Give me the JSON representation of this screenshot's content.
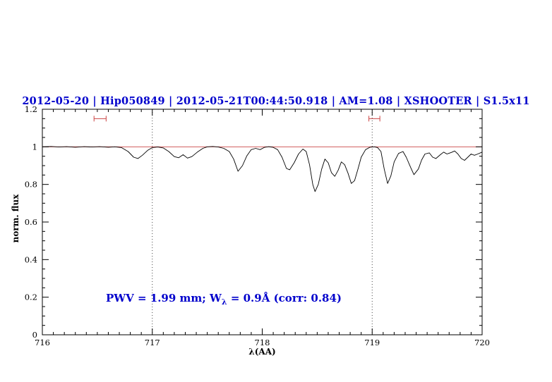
{
  "page": {
    "background": "#ffffff"
  },
  "chart_data": {
    "type": "line",
    "title": "2012-05-20 | Hip050849 | 2012-05-21T00:44:50.918 | AM=1.08 | XSHOOTER | S1.5x11",
    "xlabel": "λ(AA)",
    "ylabel": "norm. flux",
    "xlim": [
      716,
      720
    ],
    "ylim": [
      0,
      1.2
    ],
    "xticks": [
      716,
      717,
      718,
      719,
      720
    ],
    "xtick_labels": [
      "716",
      "717",
      "718",
      "719",
      "720"
    ],
    "yticks": [
      0,
      0.2,
      0.4,
      0.6,
      0.8,
      1,
      1.2
    ],
    "ytick_labels": [
      "0",
      "0.2",
      "0.4",
      "0.6",
      "0.8",
      "1",
      "1.2"
    ],
    "x_minor_step": 0.1,
    "y_minor_step": 0.05,
    "grid": "off",
    "legend": "none",
    "dotted_vlines": [
      717,
      719
    ],
    "continuum_line_y": 1.0,
    "range_markers": [
      {
        "x1": 716.47,
        "x2": 716.58,
        "y": 1.15
      },
      {
        "x1": 718.97,
        "x2": 719.07,
        "y": 1.15
      }
    ],
    "annotation": {
      "prefix": "PWV = 1.99 mm; W",
      "sub": "λ",
      "suffix": " = 0.9Å (corr: 0.84)"
    },
    "colors": {
      "title": "#0000cc",
      "annotation": "#0000cc",
      "spectrum": "#000000",
      "continuum": "#cc4444",
      "marker": "#cc4444",
      "dotted": "#444444",
      "axis": "#000000"
    },
    "series": [
      {
        "name": "observed spectrum",
        "color": "#000000",
        "points": [
          [
            716.0,
            1.0
          ],
          [
            716.08,
            1.002
          ],
          [
            716.15,
            0.999
          ],
          [
            716.22,
            1.001
          ],
          [
            716.3,
            0.998
          ],
          [
            716.38,
            1.001
          ],
          [
            716.45,
            0.999
          ],
          [
            716.52,
            1.001
          ],
          [
            716.6,
            0.998
          ],
          [
            716.66,
            1.0
          ],
          [
            716.72,
            0.996
          ],
          [
            716.78,
            0.975
          ],
          [
            716.83,
            0.945
          ],
          [
            716.87,
            0.938
          ],
          [
            716.91,
            0.955
          ],
          [
            716.96,
            0.982
          ],
          [
            717.0,
            0.996
          ],
          [
            717.05,
            0.999
          ],
          [
            717.1,
            0.994
          ],
          [
            717.15,
            0.975
          ],
          [
            717.2,
            0.948
          ],
          [
            717.24,
            0.942
          ],
          [
            717.28,
            0.958
          ],
          [
            717.32,
            0.94
          ],
          [
            717.36,
            0.948
          ],
          [
            717.41,
            0.972
          ],
          [
            717.46,
            0.992
          ],
          [
            717.5,
            1.0
          ],
          [
            717.55,
            1.002
          ],
          [
            717.6,
            0.999
          ],
          [
            717.65,
            0.992
          ],
          [
            717.7,
            0.975
          ],
          [
            717.74,
            0.935
          ],
          [
            717.78,
            0.87
          ],
          [
            717.82,
            0.9
          ],
          [
            717.86,
            0.952
          ],
          [
            717.9,
            0.985
          ],
          [
            717.94,
            0.992
          ],
          [
            717.98,
            0.985
          ],
          [
            718.02,
            0.997
          ],
          [
            718.06,
            1.001
          ],
          [
            718.1,
            0.997
          ],
          [
            718.14,
            0.985
          ],
          [
            718.18,
            0.945
          ],
          [
            718.22,
            0.885
          ],
          [
            718.25,
            0.878
          ],
          [
            718.29,
            0.915
          ],
          [
            718.33,
            0.962
          ],
          [
            718.37,
            0.988
          ],
          [
            718.4,
            0.975
          ],
          [
            718.43,
            0.905
          ],
          [
            718.46,
            0.8
          ],
          [
            718.48,
            0.762
          ],
          [
            718.51,
            0.8
          ],
          [
            718.54,
            0.88
          ],
          [
            718.57,
            0.935
          ],
          [
            718.6,
            0.915
          ],
          [
            718.63,
            0.862
          ],
          [
            718.66,
            0.843
          ],
          [
            718.69,
            0.875
          ],
          [
            718.72,
            0.92
          ],
          [
            718.75,
            0.905
          ],
          [
            718.78,
            0.86
          ],
          [
            718.81,
            0.805
          ],
          [
            718.84,
            0.82
          ],
          [
            718.87,
            0.88
          ],
          [
            718.9,
            0.945
          ],
          [
            718.94,
            0.985
          ],
          [
            718.98,
            0.998
          ],
          [
            719.02,
            1.0
          ],
          [
            719.05,
            0.996
          ],
          [
            719.08,
            0.975
          ],
          [
            719.11,
            0.88
          ],
          [
            719.14,
            0.805
          ],
          [
            719.17,
            0.845
          ],
          [
            719.2,
            0.92
          ],
          [
            719.24,
            0.965
          ],
          [
            719.28,
            0.975
          ],
          [
            719.31,
            0.945
          ],
          [
            719.35,
            0.89
          ],
          [
            719.38,
            0.852
          ],
          [
            719.42,
            0.882
          ],
          [
            719.45,
            0.93
          ],
          [
            719.48,
            0.962
          ],
          [
            719.52,
            0.968
          ],
          [
            719.55,
            0.945
          ],
          [
            719.58,
            0.938
          ],
          [
            719.62,
            0.958
          ],
          [
            719.65,
            0.972
          ],
          [
            719.68,
            0.962
          ],
          [
            719.72,
            0.97
          ],
          [
            719.75,
            0.978
          ],
          [
            719.78,
            0.962
          ],
          [
            719.81,
            0.938
          ],
          [
            719.84,
            0.928
          ],
          [
            719.87,
            0.945
          ],
          [
            719.9,
            0.962
          ],
          [
            719.93,
            0.955
          ],
          [
            719.96,
            0.962
          ],
          [
            720.0,
            0.972
          ]
        ]
      }
    ]
  }
}
